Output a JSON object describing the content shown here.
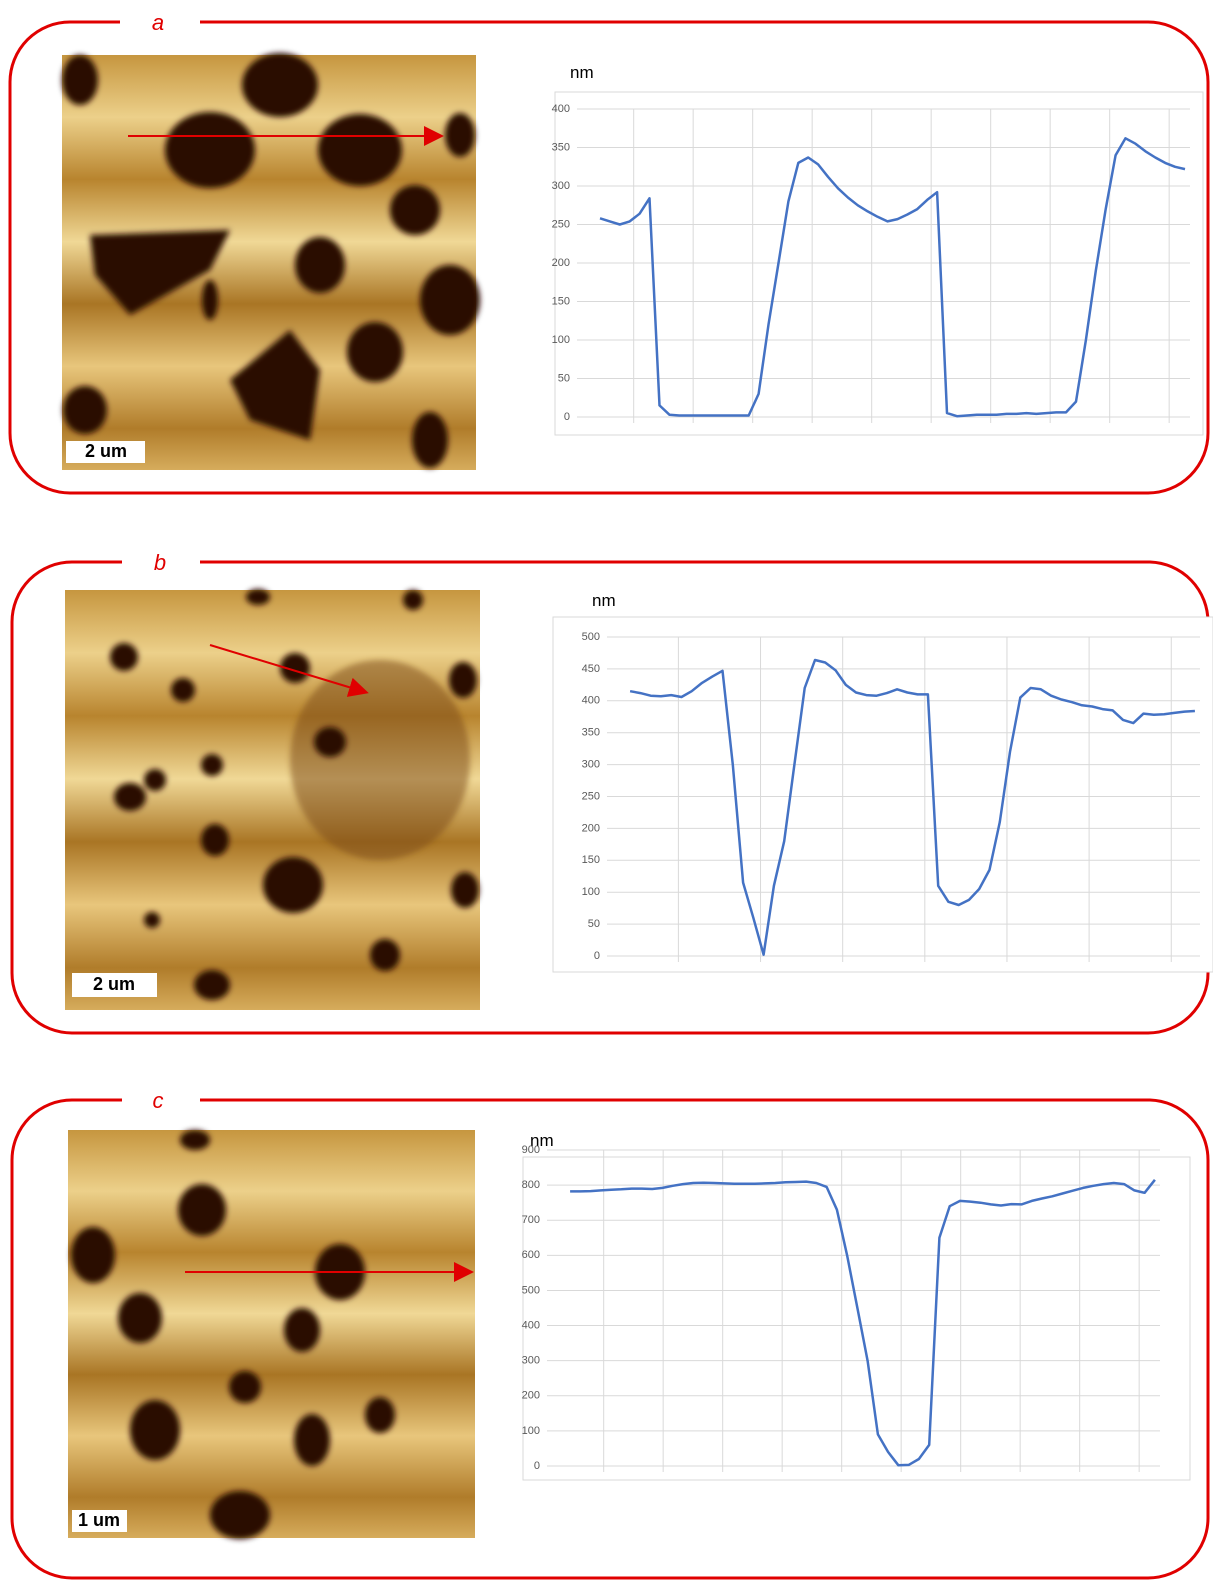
{
  "chart_data": [
    {
      "type": "line",
      "panel_label": "a",
      "scale_bar": "2 um",
      "y_unit": "nm",
      "color": "#4472c4",
      "grid": true,
      "ylim": [
        0,
        400
      ],
      "yticks": [
        0,
        50,
        100,
        150,
        200,
        250,
        300,
        350,
        400
      ],
      "values": [
        258,
        254,
        250,
        254,
        264,
        284,
        15,
        3,
        2,
        2,
        2,
        2,
        2,
        2,
        2,
        2,
        30,
        120,
        200,
        280,
        330,
        337,
        328,
        312,
        297,
        285,
        275,
        267,
        260,
        254,
        257,
        263,
        270,
        282,
        292,
        5,
        1,
        2,
        3,
        3,
        3,
        4,
        4,
        5,
        4,
        5,
        6,
        6,
        20,
        100,
        190,
        270,
        340,
        362,
        355,
        345,
        337,
        330,
        325,
        322
      ]
    },
    {
      "type": "line",
      "panel_label": "b",
      "scale_bar": "2 um",
      "y_unit": "nm",
      "color": "#4472c4",
      "grid": true,
      "ylim": [
        0,
        500
      ],
      "yticks": [
        0,
        50,
        100,
        150,
        200,
        250,
        300,
        350,
        400,
        450,
        500
      ],
      "values": [
        415,
        412,
        408,
        407,
        409,
        406,
        415,
        428,
        438,
        447,
        300,
        115,
        60,
        2,
        110,
        180,
        300,
        420,
        464,
        460,
        448,
        425,
        413,
        409,
        408,
        412,
        418,
        413,
        410,
        410,
        110,
        85,
        80,
        88,
        105,
        135,
        210,
        320,
        405,
        420,
        418,
        408,
        402,
        398,
        393,
        391,
        387,
        385,
        370,
        365,
        380,
        378,
        379,
        381,
        383,
        384
      ]
    },
    {
      "type": "line",
      "panel_label": "c",
      "scale_bar": "1 um",
      "y_unit": "nm",
      "color": "#4472c4",
      "grid": true,
      "ylim": [
        0,
        900
      ],
      "yticks": [
        0,
        100,
        200,
        300,
        400,
        500,
        600,
        700,
        800,
        900
      ],
      "values": [
        782,
        782,
        783,
        785,
        787,
        788,
        790,
        790,
        789,
        792,
        798,
        803,
        806,
        807,
        806,
        805,
        804,
        804,
        804,
        805,
        806,
        808,
        809,
        810,
        806,
        795,
        730,
        600,
        450,
        300,
        90,
        40,
        2,
        3,
        20,
        60,
        650,
        740,
        755,
        753,
        750,
        745,
        742,
        746,
        745,
        755,
        762,
        768,
        776,
        784,
        792,
        798,
        803,
        806,
        803,
        785,
        778,
        815
      ]
    }
  ]
}
